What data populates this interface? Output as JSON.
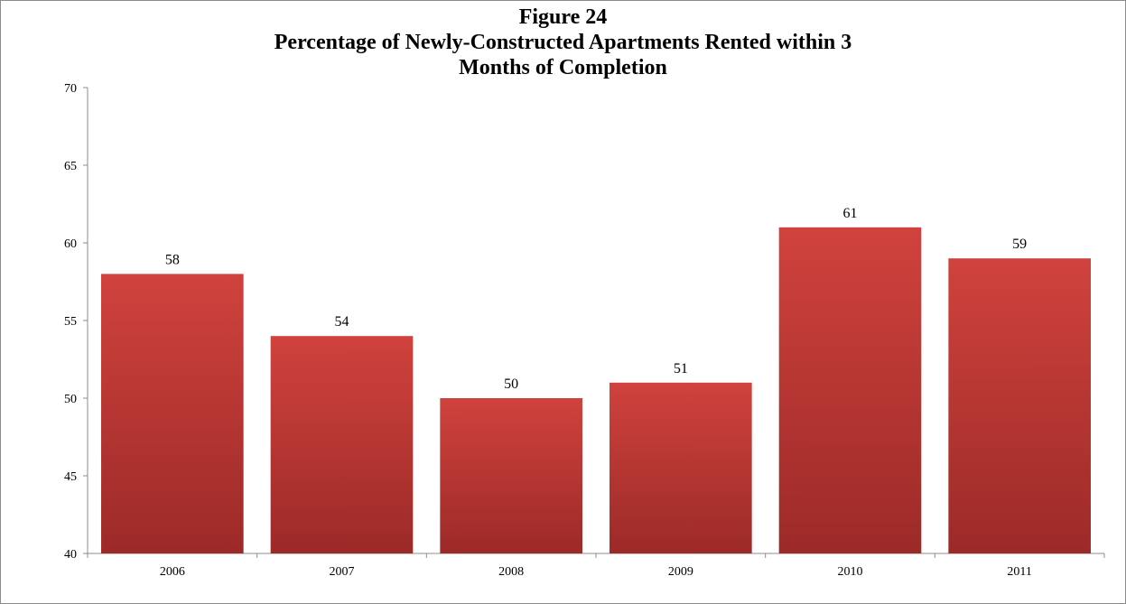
{
  "chart_data": {
    "type": "bar",
    "title": "Figure 24",
    "subtitle": [
      "Percentage of Newly-Constructed Apartments Rented within 3",
      "Months of Completion"
    ],
    "categories": [
      "2006",
      "2007",
      "2008",
      "2009",
      "2010",
      "2011"
    ],
    "values": [
      58,
      54,
      50,
      51,
      61,
      59
    ],
    "data_labels": [
      "58",
      "54",
      "50",
      "51",
      "61",
      "59"
    ],
    "y_ticks": [
      "40",
      "45",
      "50",
      "55",
      "60",
      "65",
      "70"
    ],
    "ylim": [
      40,
      70
    ],
    "xlabel": "",
    "ylabel": "",
    "grid": false,
    "legend": "none",
    "bar_color": "#c9403b"
  }
}
